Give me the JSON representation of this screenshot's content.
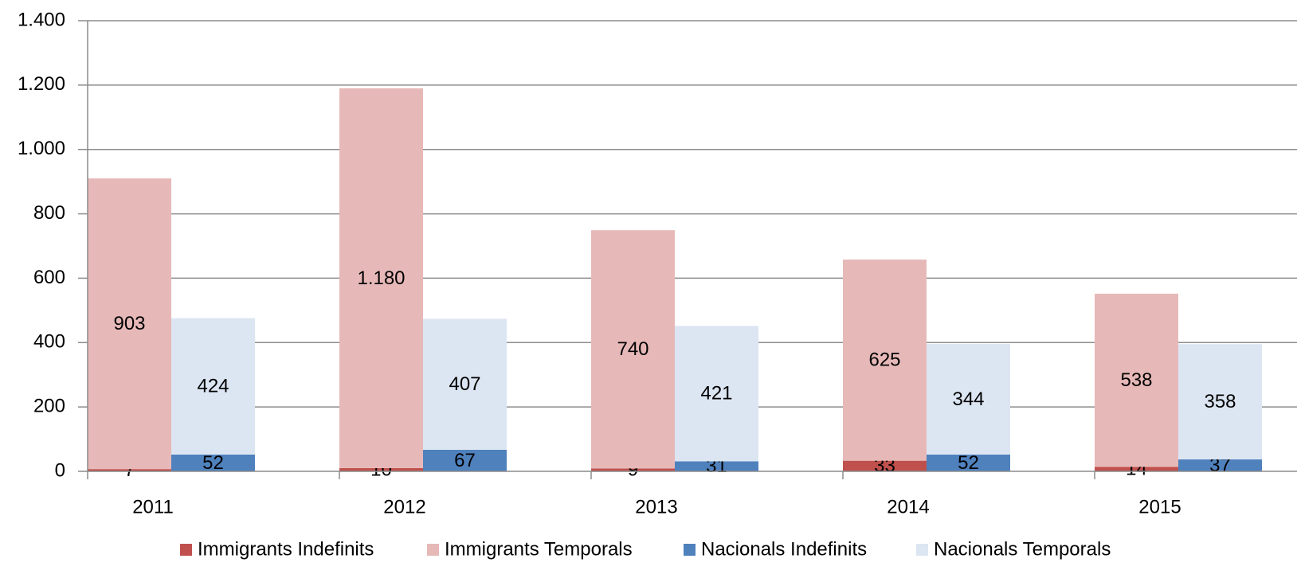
{
  "chart_data": {
    "type": "bar",
    "categories": [
      "2011",
      "2012",
      "2013",
      "2014",
      "2015"
    ],
    "series": [
      {
        "name": "Immigrants Indefinits",
        "color": "#c0504d",
        "values": [
          7,
          10,
          9,
          33,
          14
        ]
      },
      {
        "name": "Immigrants Temporals",
        "color": "#e6b9b8",
        "values": [
          903,
          1180,
          740,
          625,
          538
        ],
        "value_labels": [
          "903",
          "1.180",
          "740",
          "625",
          "538"
        ]
      },
      {
        "name": "Nacionals Indefinits",
        "color": "#4f81bd",
        "values": [
          52,
          67,
          31,
          52,
          37
        ]
      },
      {
        "name": "Nacionals Temporals",
        "color": "#dce6f2",
        "values": [
          424,
          407,
          421,
          344,
          358
        ]
      }
    ],
    "ylim": [
      0,
      1400
    ],
    "yticks": [
      0,
      200,
      400,
      600,
      800,
      {
        "value": 1000,
        "label": "1.000"
      },
      {
        "value": 1200,
        "label": "1.200"
      },
      {
        "value": 1400,
        "label": "1.400"
      }
    ],
    "grid": true
  }
}
